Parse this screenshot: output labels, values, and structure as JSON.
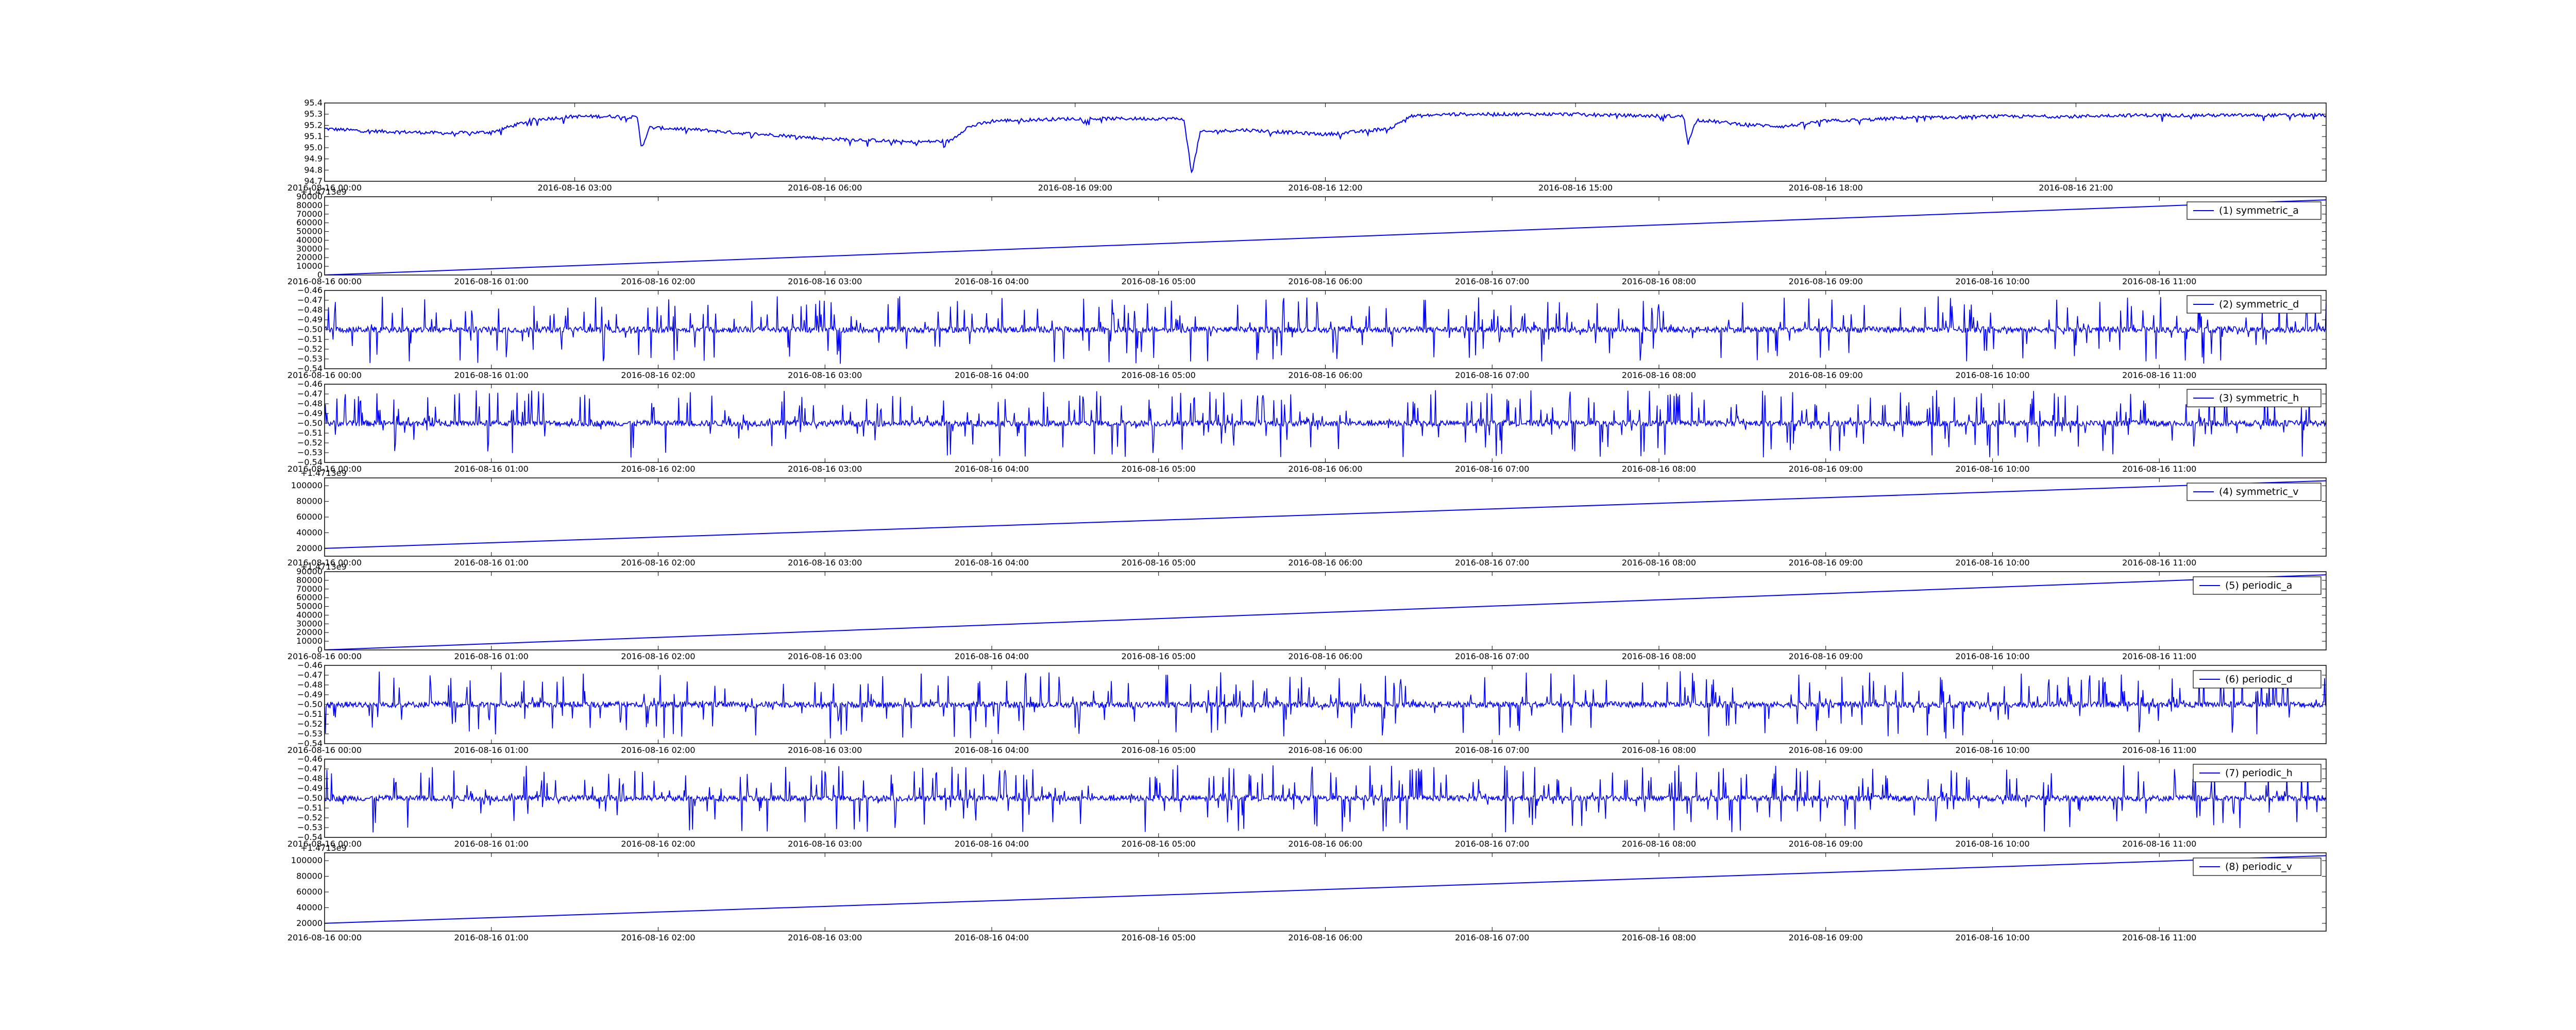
{
  "chart_data": [
    {
      "type": "line",
      "title": "",
      "xlabel": "",
      "ylabel": "",
      "legend": null,
      "x_ticks": [
        "2016-08-16 00:00",
        "2016-08-16 03:00",
        "2016-08-16 06:00",
        "2016-08-16 09:00",
        "2016-08-16 12:00",
        "2016-08-16 15:00",
        "2016-08-16 18:00",
        "2016-08-16 21:00"
      ],
      "xlim_hours": [
        0,
        24
      ],
      "ylim": [
        94.7,
        95.4
      ],
      "y_ticks": [
        "95.4",
        "95.3",
        "95.2",
        "95.1",
        "95.0",
        "94.9",
        "94.8",
        "94.7"
      ],
      "series": [
        {
          "x_hours": [
            0,
            0.5,
            1,
            1.5,
            2,
            2.5,
            3,
            3.5,
            3.75,
            3.8,
            3.9,
            4.5,
            5,
            5.5,
            6,
            6.5,
            7,
            7.5,
            7.7,
            8,
            8.5,
            9,
            9.5,
            10,
            10.3,
            10.4,
            10.5,
            11,
            11.5,
            12,
            12.5,
            12.8,
            13,
            13.5,
            14,
            14.5,
            15,
            15.5,
            16.3,
            16.35,
            16.45,
            17,
            17.5,
            18,
            18.5,
            19,
            19.5,
            20,
            20.5,
            21,
            21.5,
            22,
            22.5,
            23,
            23.5,
            24
          ],
          "values": [
            95.17,
            95.15,
            95.14,
            95.13,
            95.14,
            95.25,
            95.28,
            95.28,
            95.27,
            95.0,
            95.18,
            95.16,
            95.13,
            95.11,
            95.08,
            95.07,
            95.05,
            95.06,
            95.18,
            95.24,
            95.25,
            95.26,
            95.26,
            95.26,
            95.26,
            94.77,
            95.14,
            95.16,
            95.14,
            95.12,
            95.15,
            95.18,
            95.28,
            95.3,
            95.3,
            95.3,
            95.3,
            95.29,
            95.28,
            95.04,
            95.25,
            95.21,
            95.19,
            95.24,
            95.25,
            95.27,
            95.27,
            95.28,
            95.28,
            95.28,
            95.29,
            95.29,
            95.29,
            95.29,
            95.29,
            95.29
          ]
        }
      ]
    },
    {
      "type": "line",
      "offset_text": "+1.4713e9",
      "x_ticks": [
        "2016-08-16 00:00",
        "2016-08-16 01:00",
        "2016-08-16 02:00",
        "2016-08-16 03:00",
        "2016-08-16 04:00",
        "2016-08-16 05:00",
        "2016-08-16 06:00",
        "2016-08-16 07:00",
        "2016-08-16 08:00",
        "2016-08-16 09:00",
        "2016-08-16 10:00",
        "2016-08-16 11:00"
      ],
      "xlim_hours": [
        0,
        12
      ],
      "ylim": [
        0,
        90000
      ],
      "y_ticks": [
        "90000",
        "80000",
        "70000",
        "60000",
        "50000",
        "40000",
        "30000",
        "20000",
        "10000",
        "0"
      ],
      "legend": "top-right",
      "series": [
        {
          "name": "(1) symmetric_a",
          "x_hours": [
            0,
            12
          ],
          "values": [
            0,
            86400
          ]
        }
      ]
    },
    {
      "type": "line",
      "x_ticks": [
        "2016-08-16 00:00",
        "2016-08-16 01:00",
        "2016-08-16 02:00",
        "2016-08-16 03:00",
        "2016-08-16 04:00",
        "2016-08-16 05:00",
        "2016-08-16 06:00",
        "2016-08-16 07:00",
        "2016-08-16 08:00",
        "2016-08-16 09:00",
        "2016-08-16 10:00",
        "2016-08-16 11:00"
      ],
      "xlim_hours": [
        0,
        12
      ],
      "ylim": [
        -0.54,
        -0.46
      ],
      "y_ticks": [
        "−0.46",
        "−0.47",
        "−0.48",
        "−0.49",
        "−0.50",
        "−0.51",
        "−0.52",
        "−0.53",
        "−0.54"
      ],
      "legend": "top-right",
      "series": [
        {
          "name": "(2) symmetric_d",
          "baseline": -0.5,
          "spike_max": -0.466,
          "spike_min": -0.535
        }
      ]
    },
    {
      "type": "line",
      "x_ticks": [
        "2016-08-16 00:00",
        "2016-08-16 01:00",
        "2016-08-16 02:00",
        "2016-08-16 03:00",
        "2016-08-16 04:00",
        "2016-08-16 05:00",
        "2016-08-16 06:00",
        "2016-08-16 07:00",
        "2016-08-16 08:00",
        "2016-08-16 09:00",
        "2016-08-16 10:00",
        "2016-08-16 11:00"
      ],
      "xlim_hours": [
        0,
        12
      ],
      "ylim": [
        -0.54,
        -0.46
      ],
      "y_ticks": [
        "−0.46",
        "−0.47",
        "−0.48",
        "−0.49",
        "−0.50",
        "−0.51",
        "−0.52",
        "−0.53",
        "−0.54"
      ],
      "legend": "top-right",
      "series": [
        {
          "name": "(3) symmetric_h",
          "baseline": -0.5,
          "spike_max": -0.466,
          "spike_min": -0.535
        }
      ]
    },
    {
      "type": "line",
      "offset_text": "+1.4713e9",
      "x_ticks": [
        "2016-08-16 00:00",
        "2016-08-16 01:00",
        "2016-08-16 02:00",
        "2016-08-16 03:00",
        "2016-08-16 04:00",
        "2016-08-16 05:00",
        "2016-08-16 06:00",
        "2016-08-16 07:00",
        "2016-08-16 08:00",
        "2016-08-16 09:00",
        "2016-08-16 10:00",
        "2016-08-16 11:00"
      ],
      "xlim_hours": [
        0,
        12
      ],
      "ylim": [
        10000,
        110000
      ],
      "y_ticks": [
        "100000",
        "80000",
        "60000",
        "40000",
        "20000"
      ],
      "legend": "top-right",
      "series": [
        {
          "name": "(4) symmetric_v",
          "x_hours": [
            0,
            12
          ],
          "values": [
            20000,
            106400
          ]
        }
      ]
    },
    {
      "type": "line",
      "offset_text": "+1.4713e9",
      "x_ticks": [
        "2016-08-16 00:00",
        "2016-08-16 01:00",
        "2016-08-16 02:00",
        "2016-08-16 03:00",
        "2016-08-16 04:00",
        "2016-08-16 05:00",
        "2016-08-16 06:00",
        "2016-08-16 07:00",
        "2016-08-16 08:00",
        "2016-08-16 09:00",
        "2016-08-16 10:00",
        "2016-08-16 11:00"
      ],
      "xlim_hours": [
        0,
        12
      ],
      "ylim": [
        0,
        90000
      ],
      "y_ticks": [
        "90000",
        "80000",
        "70000",
        "60000",
        "50000",
        "40000",
        "30000",
        "20000",
        "10000",
        "0"
      ],
      "legend": "top-right",
      "series": [
        {
          "name": "(5) periodic_a",
          "x_hours": [
            0,
            12
          ],
          "values": [
            0,
            86400
          ]
        }
      ]
    },
    {
      "type": "line",
      "x_ticks": [
        "2016-08-16 00:00",
        "2016-08-16 01:00",
        "2016-08-16 02:00",
        "2016-08-16 03:00",
        "2016-08-16 04:00",
        "2016-08-16 05:00",
        "2016-08-16 06:00",
        "2016-08-16 07:00",
        "2016-08-16 08:00",
        "2016-08-16 09:00",
        "2016-08-16 10:00",
        "2016-08-16 11:00"
      ],
      "xlim_hours": [
        0,
        12
      ],
      "ylim": [
        -0.54,
        -0.46
      ],
      "y_ticks": [
        "−0.46",
        "−0.47",
        "−0.48",
        "−0.49",
        "−0.50",
        "−0.51",
        "−0.52",
        "−0.53",
        "−0.54"
      ],
      "legend": "top-right",
      "series": [
        {
          "name": "(6) periodic_d",
          "baseline": -0.5,
          "spike_max": -0.466,
          "spike_min": -0.535
        }
      ]
    },
    {
      "type": "line",
      "x_ticks": [
        "2016-08-16 00:00",
        "2016-08-16 01:00",
        "2016-08-16 02:00",
        "2016-08-16 03:00",
        "2016-08-16 04:00",
        "2016-08-16 05:00",
        "2016-08-16 06:00",
        "2016-08-16 07:00",
        "2016-08-16 08:00",
        "2016-08-16 09:00",
        "2016-08-16 10:00",
        "2016-08-16 11:00"
      ],
      "xlim_hours": [
        0,
        12
      ],
      "ylim": [
        -0.54,
        -0.46
      ],
      "y_ticks": [
        "−0.46",
        "−0.47",
        "−0.48",
        "−0.49",
        "−0.50",
        "−0.51",
        "−0.52",
        "−0.53",
        "−0.54"
      ],
      "legend": "top-right",
      "series": [
        {
          "name": "(7) periodic_h",
          "baseline": -0.5,
          "spike_max": -0.466,
          "spike_min": -0.535
        }
      ]
    },
    {
      "type": "line",
      "offset_text": "+1.4713e9",
      "x_ticks": [
        "2016-08-16 00:00",
        "2016-08-16 01:00",
        "2016-08-16 02:00",
        "2016-08-16 03:00",
        "2016-08-16 04:00",
        "2016-08-16 05:00",
        "2016-08-16 06:00",
        "2016-08-16 07:00",
        "2016-08-16 08:00",
        "2016-08-16 09:00",
        "2016-08-16 10:00",
        "2016-08-16 11:00"
      ],
      "xlim_hours": [
        0,
        12
      ],
      "ylim": [
        10000,
        110000
      ],
      "y_ticks": [
        "100000",
        "80000",
        "60000",
        "40000",
        "20000"
      ],
      "legend": "top-right",
      "series": [
        {
          "name": "(8) periodic_v",
          "x_hours": [
            0,
            12
          ],
          "values": [
            20000,
            106400
          ]
        }
      ]
    }
  ],
  "style": {
    "line_color": "#0000ff",
    "axis_color": "#000000",
    "text_color": "#000000"
  }
}
